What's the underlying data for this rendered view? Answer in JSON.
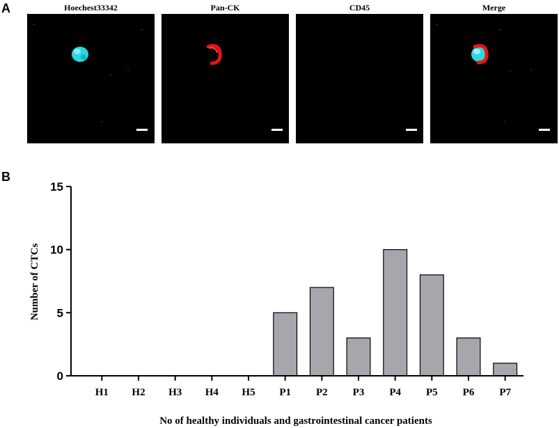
{
  "panels": {
    "a_label": "A",
    "b_label": "B"
  },
  "micrographs": [
    {
      "label": "Hoechest33342",
      "stain": "nucleus",
      "color": "#2fd5e0"
    },
    {
      "label": "Pan-CK",
      "stain": "cytokeratin",
      "color": "#e51616"
    },
    {
      "label": "CD45",
      "stain": "none",
      "color": "#000000"
    },
    {
      "label": "Merge",
      "stain": "merge",
      "color": "#e51616"
    }
  ],
  "chart_data": {
    "type": "bar",
    "categories": [
      "H1",
      "H2",
      "H3",
      "H4",
      "H5",
      "P1",
      "P2",
      "P3",
      "P4",
      "P5",
      "P6",
      "P7"
    ],
    "values": [
      0,
      0,
      0,
      0,
      0,
      5,
      7,
      3,
      10,
      8,
      3,
      1
    ],
    "xlabel": "No of healthy individuals and gastrointestinal cancer patients",
    "ylabel": "Number of CTCs",
    "ylim": [
      0,
      15
    ],
    "yticks": [
      0,
      5,
      10,
      15
    ],
    "bar_color": "#a7a6ad",
    "grid": false
  }
}
